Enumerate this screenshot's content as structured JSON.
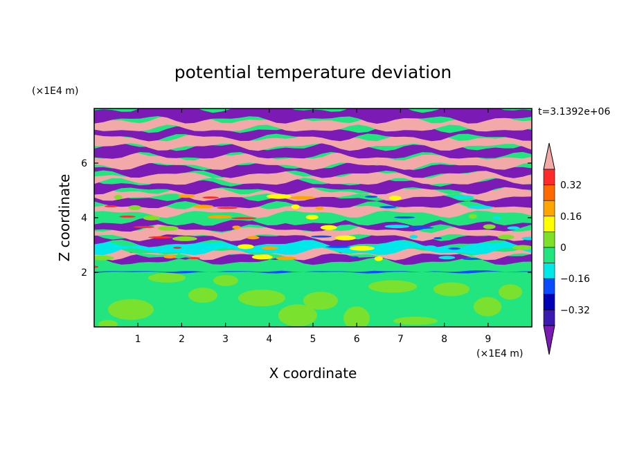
{
  "chart_data": {
    "type": "heatmap",
    "title": "potential temperature deviation",
    "xlabel": "X coordinate",
    "ylabel": "Z coordinate",
    "x_unit": "(×1E4 m)",
    "y_unit": "(×1E4 m)",
    "time_label": "t=3.1392e+06",
    "xlim": [
      0,
      10
    ],
    "ylim": [
      0,
      8
    ],
    "x_ticks": [
      "1",
      "2",
      "3",
      "4",
      "5",
      "6",
      "7",
      "8",
      "9"
    ],
    "y_ticks": [
      "2",
      "4",
      "6"
    ],
    "grid": false,
    "colorbar": {
      "position": "right",
      "tick_labels": [
        "0.32",
        "0.16",
        "0",
        "−0.16",
        "−0.32"
      ],
      "levels": [
        0.4,
        0.32,
        0.24,
        0.16,
        0.08,
        0,
        -0.08,
        -0.16,
        -0.24,
        -0.32,
        -0.4
      ],
      "colors": {
        "above_0.4": "#f4a9a9",
        "0.32_to_0.4": "#ff2a2a",
        "0.24_to_0.32": "#ff6a00",
        "0.16_to_0.24": "#ffa500",
        "0.08_to_0.16": "#ffff00",
        "0_to_0.08": "#7fe02a",
        "-0.08_to_0": "#22e57f",
        "-0.16_to_-0.08": "#00e8e8",
        "-0.24_to_-0.16": "#0a4bff",
        "-0.32_to_-0.24": "#0000b4",
        "-0.4_to_-0.32": "#3a1ab0",
        "below_-0.4": "#7b1ab4"
      }
    },
    "field_layers": [
      {
        "z_range": [
          0,
          2.0
        ],
        "description": "mixed layer",
        "values": [
          0.02,
          -0.04
        ],
        "dominant_color": "#22e57f",
        "secondary_color": "#7fe02a"
      },
      {
        "z_range": [
          2.0,
          2.05
        ],
        "values": [
          -0.2
        ],
        "dominant_color": "#0a4bff"
      },
      {
        "z_range": [
          2.05,
          2.4
        ],
        "values": [
          -0.04
        ],
        "dominant_color": "#22e57f"
      },
      {
        "z_range": [
          2.4,
          2.6
        ],
        "values": [
          -0.5
        ],
        "dominant_color": "#7b1ab4"
      },
      {
        "z_range": [
          2.6,
          2.75
        ],
        "values": [
          0.5
        ],
        "dominant_color": "#f4a9a9"
      },
      {
        "z_range": [
          2.75,
          3.05
        ],
        "values": [
          -0.1,
          0.2
        ],
        "dominant_color": "#00e8e8"
      },
      {
        "z_range": [
          3.05,
          3.3
        ],
        "values": [
          -0.5
        ],
        "dominant_color": "#7b1ab4"
      },
      {
        "z_range": [
          3.3,
          3.6
        ],
        "values": [
          0.5,
          0.35
        ],
        "dominant_color": "#f4a9a9"
      },
      {
        "z_range": [
          3.6,
          3.85
        ],
        "values": [
          -0.5
        ],
        "dominant_color": "#7b1ab4"
      },
      {
        "z_range": [
          3.85,
          4.15
        ],
        "values": [
          -0.05,
          0.1
        ],
        "dominant_color": "#22e57f"
      },
      {
        "z_range": [
          4.15,
          4.45
        ],
        "values": [
          0.5
        ],
        "dominant_color": "#f4a9a9"
      },
      {
        "z_range": [
          4.45,
          4.75
        ],
        "values": [
          -0.5
        ],
        "dominant_color": "#7b1ab4"
      },
      {
        "z_range": [
          4.75,
          5.0
        ],
        "values": [
          0.5
        ],
        "dominant_color": "#f4a9a9"
      },
      {
        "z_range": [
          5.0,
          5.3
        ],
        "values": [
          -0.5
        ],
        "dominant_color": "#7b1ab4"
      },
      {
        "z_range": [
          5.3,
          5.6
        ],
        "values": [
          0.5
        ],
        "dominant_color": "#f4a9a9"
      },
      {
        "z_range": [
          5.6,
          5.9
        ],
        "values": [
          -0.5
        ],
        "dominant_color": "#7b1ab4"
      },
      {
        "z_range": [
          5.9,
          6.25
        ],
        "values": [
          0.5
        ],
        "dominant_color": "#f4a9a9"
      },
      {
        "z_range": [
          6.25,
          6.6
        ],
        "values": [
          -0.5
        ],
        "dominant_color": "#7b1ab4"
      },
      {
        "z_range": [
          6.6,
          6.95
        ],
        "values": [
          0.5
        ],
        "dominant_color": "#f4a9a9"
      },
      {
        "z_range": [
          6.95,
          7.25
        ],
        "values": [
          -0.5
        ],
        "dominant_color": "#7b1ab4"
      },
      {
        "z_range": [
          7.25,
          7.6
        ],
        "values": [
          0.5
        ],
        "dominant_color": "#f4a9a9"
      },
      {
        "z_range": [
          7.6,
          8.0
        ],
        "values": [
          -0.5
        ],
        "dominant_color": "#7b1ab4"
      }
    ]
  }
}
